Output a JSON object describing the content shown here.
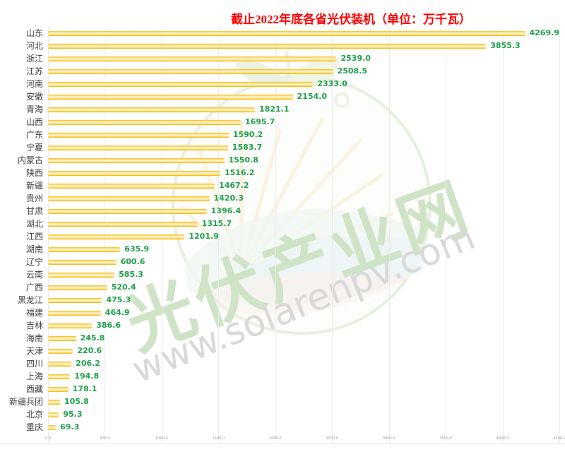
{
  "title": {
    "text": "截止2022年底各省光伏装机（单位：万千瓦）",
    "color": "#FF0000"
  },
  "watermark": {
    "brand_text": "光伏产业网",
    "url_text": "www.solarenpv.com",
    "logo": "solar-leaf-circle-logo"
  },
  "chart_data": {
    "type": "bar",
    "orientation": "horizontal",
    "title": "截止2022年底各省光伏装机（单位：万千瓦）",
    "categories": [
      "山东",
      "河北",
      "浙江",
      "江苏",
      "河南",
      "安徽",
      "青海",
      "山西",
      "广东",
      "宁夏",
      "内蒙古",
      "陕西",
      "新疆",
      "贵州",
      "甘肃",
      "湖北",
      "江西",
      "湖南",
      "辽宁",
      "云南",
      "广西",
      "黑龙江",
      "福建",
      "吉林",
      "海南",
      "天津",
      "四川",
      "上海",
      "西藏",
      "新疆兵团",
      "北京",
      "重庆"
    ],
    "values": [
      4269.9,
      3855.3,
      2539.0,
      2508.5,
      2333.0,
      2154.0,
      1821.1,
      1695.7,
      1590.2,
      1583.7,
      1550.8,
      1516.2,
      1467.2,
      1420.3,
      1396.4,
      1315.7,
      1201.9,
      635.9,
      600.6,
      585.3,
      520.4,
      475.3,
      464.9,
      386.6,
      245.8,
      220.6,
      206.2,
      194.8,
      178.1,
      105.8,
      95.3,
      69.3
    ],
    "value_labels": [
      "4269.9",
      "3855.3",
      "2539.0",
      "2508.5",
      "2333.0",
      "2154.0",
      "1821.1",
      "1695.7",
      "1590.2",
      "1583.7",
      "1550.8",
      "1516.2",
      "1467.2",
      "1420.3",
      "1396.4",
      "1315.7",
      "1201.9",
      "635.9",
      "600.6",
      "585.3",
      "520.4",
      "475.3",
      "464.9",
      "386.6",
      "245.8",
      "220.6",
      "206.2",
      "194.8",
      "178.1",
      "105.8",
      "95.3",
      "69.3"
    ],
    "xlim": [
      0,
      4500
    ],
    "x_ticks": [
      0,
      500,
      1000,
      1500,
      2000,
      2500,
      3000,
      3500,
      4000,
      4500
    ],
    "x_tick_labels": [
      "0.0",
      "500.0",
      "1000.0",
      "1500.0",
      "2000.0",
      "2500.0",
      "3000.0",
      "3500.0",
      "4000.0",
      "4500.0"
    ],
    "bar_color": "#FBC12D",
    "value_label_color": "#1FA04B",
    "grid": true,
    "legend": false
  }
}
